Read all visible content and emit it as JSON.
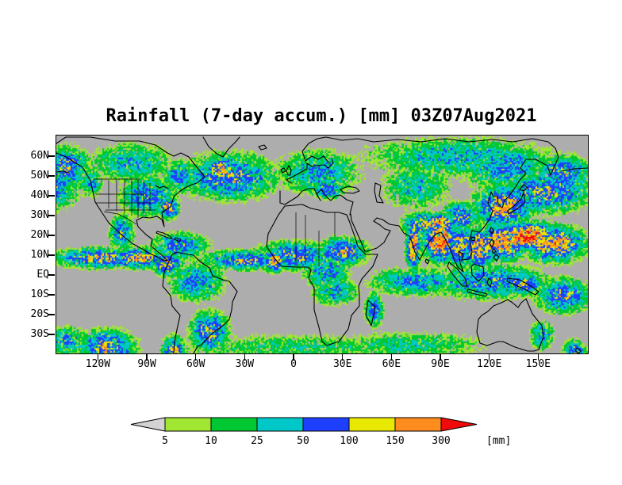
{
  "title": "Rainfall (7-day accum.) [mm] 03Z07Aug2021",
  "colorbar": {
    "unit_label": "[mm]",
    "tick_labels": [
      "5",
      "10",
      "25",
      "50",
      "100",
      "150",
      "300"
    ],
    "below_min_color": "#d3d3d3",
    "segment_colors": [
      "#a0e632",
      "#00c832",
      "#00c8c8",
      "#1f3fff",
      "#e8e800",
      "#ff8c1e"
    ],
    "above_max_color": "#f00a0a"
  },
  "map": {
    "background_color": "#adadad",
    "lat_ticks": [
      {
        "label": "60N",
        "lat": 60
      },
      {
        "label": "50N",
        "lat": 50
      },
      {
        "label": "40N",
        "lat": 40
      },
      {
        "label": "30N",
        "lat": 30
      },
      {
        "label": "20N",
        "lat": 20
      },
      {
        "label": "10N",
        "lat": 10
      },
      {
        "label": "EQ",
        "lat": 0
      },
      {
        "label": "10S",
        "lat": -10
      },
      {
        "label": "20S",
        "lat": -20
      },
      {
        "label": "30S",
        "lat": -30
      }
    ],
    "lon_ticks": [
      {
        "label": "120W",
        "lon": -120
      },
      {
        "label": "90W",
        "lon": -90
      },
      {
        "label": "60W",
        "lon": -60
      },
      {
        "label": "30W",
        "lon": -30
      },
      {
        "label": "0",
        "lon": 0
      },
      {
        "label": "30E",
        "lon": 30
      },
      {
        "label": "60E",
        "lon": 60
      },
      {
        "label": "90E",
        "lon": 90
      },
      {
        "label": "120E",
        "lon": 120
      },
      {
        "label": "150E",
        "lon": 150
      }
    ]
  },
  "chart_data": {
    "type": "heatmap",
    "title": "Rainfall (7-day accum.) [mm] 03Z07Aug2021",
    "units": "mm",
    "thresholds": [
      5,
      10,
      25,
      50,
      100,
      150,
      300
    ],
    "lat_range": [
      -40,
      70.8
    ],
    "lon_range": [
      -146,
      180
    ],
    "legend_position": "bottom",
    "note": "7-day accumulated rainfall map; rain_regions are approximate blob descriptors [lon_center, lat_center, lon_radius_deg, lat_radius_deg, peak_mm] read from the image",
    "rain_regions": [
      [
        -120,
        9,
        18,
        3.5,
        120
      ],
      [
        -95,
        9,
        12,
        3.5,
        150
      ],
      [
        -78,
        6,
        6,
        4,
        150
      ],
      [
        -30,
        8,
        18,
        3.5,
        90
      ],
      [
        -12,
        8,
        5,
        4,
        160
      ],
      [
        0,
        10,
        16,
        5,
        90
      ],
      [
        30,
        12,
        10,
        5,
        110
      ],
      [
        20,
        2,
        10,
        6,
        60
      ],
      [
        73,
        15,
        3,
        8,
        200
      ],
      [
        90,
        18,
        7,
        7,
        260
      ],
      [
        80,
        26,
        9,
        4,
        130
      ],
      [
        102,
        15,
        7,
        7,
        140
      ],
      [
        113,
        14,
        7,
        7,
        160
      ],
      [
        128,
        17,
        10,
        6,
        220
      ],
      [
        143,
        20,
        12,
        4.5,
        280
      ],
      [
        160,
        16,
        12,
        6,
        180
      ],
      [
        120,
        -3,
        25,
        6,
        70
      ],
      [
        140,
        -4,
        8,
        4,
        110
      ],
      [
        165,
        -10,
        12,
        6,
        90
      ],
      [
        128,
        35,
        12,
        7,
        150
      ],
      [
        155,
        42,
        18,
        7,
        100
      ],
      [
        -150,
        45,
        12,
        8,
        80
      ],
      [
        -140,
        55,
        10,
        7,
        90
      ],
      [
        -125,
        47,
        5,
        5,
        60
      ],
      [
        -90,
        40,
        12,
        7,
        70
      ],
      [
        -77,
        34,
        4,
        3.5,
        180
      ],
      [
        -40,
        50,
        20,
        8,
        90
      ],
      [
        -45,
        53,
        8,
        5,
        130
      ],
      [
        15,
        52,
        18,
        8,
        50
      ],
      [
        20,
        44,
        8,
        4,
        70
      ],
      [
        -106,
        22,
        5,
        6,
        90
      ],
      [
        -70,
        15,
        12,
        5,
        70
      ],
      [
        -60,
        -3,
        12,
        7,
        60
      ],
      [
        -52,
        -28,
        8,
        7,
        110
      ],
      [
        -74,
        -38,
        5,
        5,
        120
      ],
      [
        25,
        -8,
        10,
        5,
        50
      ],
      [
        49,
        -17,
        4,
        6,
        70
      ],
      [
        75,
        -3,
        20,
        5,
        60
      ],
      [
        88,
        27,
        10,
        3,
        160
      ],
      [
        75,
        45,
        15,
        8,
        40
      ],
      [
        100,
        60,
        40,
        7,
        45
      ],
      [
        130,
        55,
        20,
        8,
        60
      ],
      [
        165,
        52,
        12,
        6,
        90
      ],
      [
        102,
        30,
        8,
        5,
        90
      ],
      [
        127,
        38,
        5,
        4,
        120
      ],
      [
        172,
        -38,
        5,
        4,
        80
      ],
      [
        -100,
        57,
        18,
        7,
        45
      ],
      [
        -70,
        50,
        8,
        6,
        60
      ],
      [
        -115,
        -36,
        12,
        6,
        110
      ],
      [
        -140,
        -33,
        8,
        5,
        70
      ],
      [
        0,
        -36,
        60,
        5,
        22
      ],
      [
        70,
        -35,
        35,
        5,
        28
      ],
      [
        152,
        -30,
        5,
        5,
        60
      ]
    ]
  }
}
